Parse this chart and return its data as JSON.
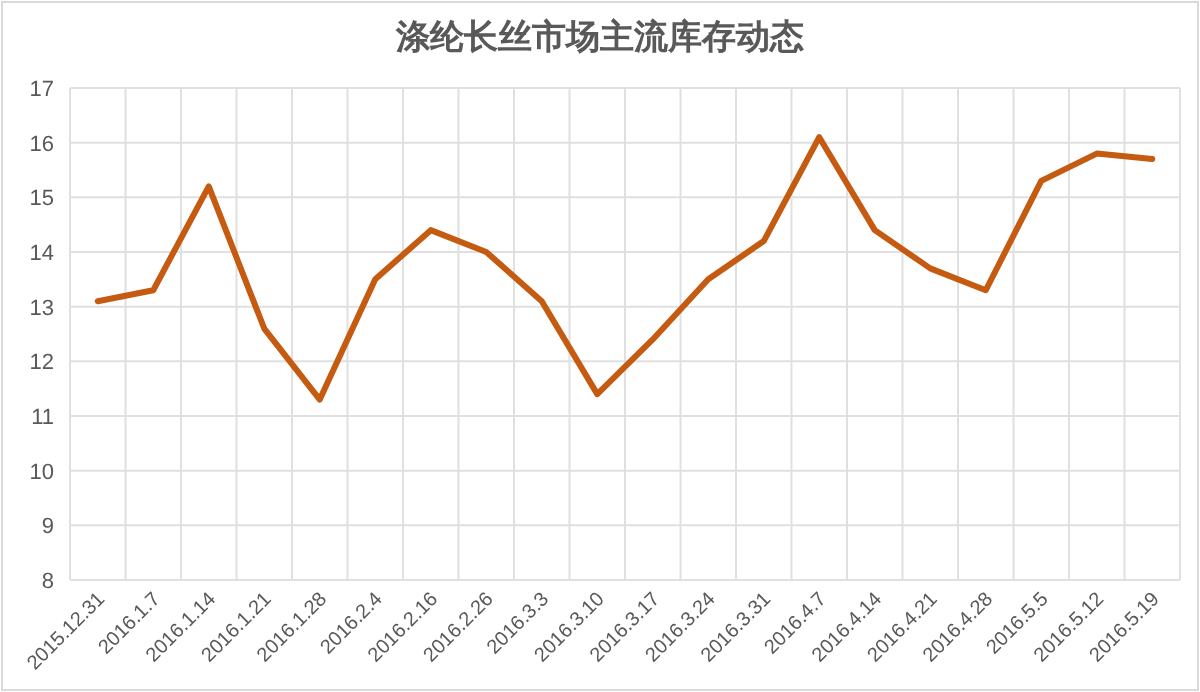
{
  "chart_data": {
    "type": "line",
    "title": "涤纶长丝市场主流库存动态",
    "categories": [
      "2015.12.31",
      "2016.1.7",
      "2016.1.14",
      "2016.1.21",
      "2016.1.28",
      "2016.2.4",
      "2016.2.16",
      "2016.2.26",
      "2016.3.3",
      "2016.3.10",
      "2016.3.17",
      "2016.3.24",
      "2016.3.31",
      "2016.4.7",
      "2016.4.14",
      "2016.4.21",
      "2016.4.28",
      "2016.5.5",
      "2016.5.12",
      "2016.5.19"
    ],
    "series": [
      {
        "color": "#c55a11",
        "values": [
          13.1,
          13.3,
          15.2,
          12.6,
          11.3,
          13.5,
          14.4,
          14.0,
          13.1,
          11.4,
          12.4,
          13.5,
          14.2,
          16.1,
          14.4,
          13.7,
          13.3,
          15.3,
          15.8,
          15.7
        ]
      }
    ],
    "ylim": [
      8,
      17
    ],
    "yticks": [
      8,
      9,
      10,
      11,
      12,
      13,
      14,
      15,
      16,
      17
    ],
    "grid": true,
    "marker": "none",
    "line_style": "solid"
  }
}
